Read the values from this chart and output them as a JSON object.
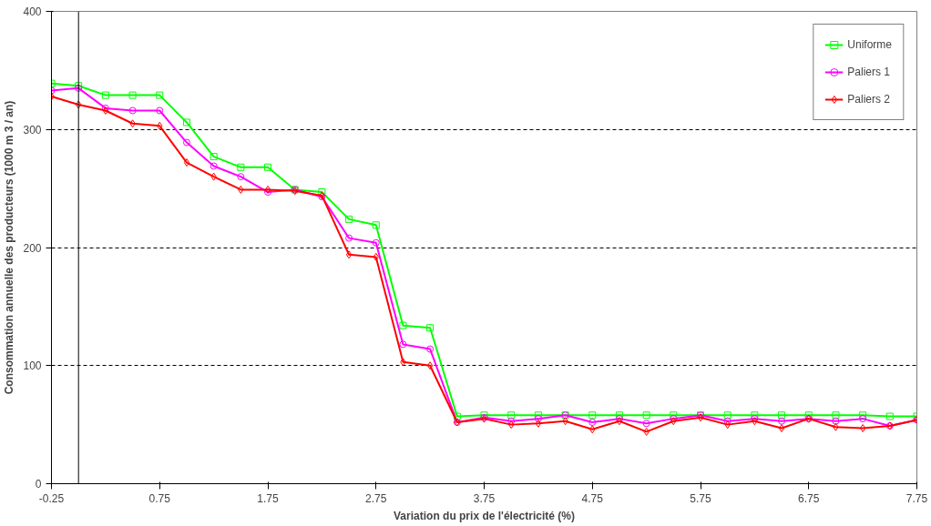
{
  "chart_data": {
    "type": "line",
    "xlabel": "Variation du prix de l'électricité (%)",
    "ylabel": "Consommation annuelle des producteurs (1000 m 3 / an)",
    "x": [
      -0.25,
      0,
      0.25,
      0.5,
      0.75,
      1.0,
      1.25,
      1.5,
      1.75,
      2.0,
      2.25,
      2.5,
      2.75,
      3.0,
      3.25,
      3.5,
      3.75,
      4.0,
      4.25,
      4.5,
      4.75,
      5.0,
      5.25,
      5.5,
      5.75,
      6.0,
      6.25,
      6.5,
      6.75,
      7.0,
      7.25,
      7.5,
      7.75
    ],
    "series": [
      {
        "name": "Uniforme",
        "color": "#00ff00",
        "marker": "square",
        "values": [
          339,
          337,
          329,
          329,
          329,
          306,
          277,
          268,
          268,
          249,
          247,
          224,
          219,
          134,
          132,
          57,
          58,
          58,
          58,
          58,
          58,
          58,
          58,
          58,
          58,
          58,
          58,
          58,
          58,
          58,
          58,
          57,
          57
        ]
      },
      {
        "name": "Paliers 1",
        "color": "#ff00ff",
        "marker": "circle",
        "values": [
          333,
          335,
          318,
          316,
          316,
          289,
          269,
          260,
          247,
          249,
          243,
          208,
          204,
          118,
          114,
          52,
          56,
          53,
          55,
          58,
          52,
          55,
          51,
          55,
          58,
          53,
          55,
          53,
          55,
          53,
          55,
          49,
          54
        ]
      },
      {
        "name": "Paliers 2",
        "color": "#ff0000",
        "marker": "diamond",
        "values": [
          328,
          321,
          316,
          305,
          303,
          272,
          260,
          249,
          249,
          248,
          244,
          194,
          192,
          103,
          100,
          52,
          55,
          50,
          51,
          53,
          46,
          53,
          44,
          53,
          56,
          50,
          53,
          47,
          55,
          48,
          47,
          49,
          54
        ]
      }
    ],
    "xlim": [
      -0.25,
      7.75
    ],
    "xticks": [
      -0.25,
      0.75,
      1.75,
      2.75,
      3.75,
      4.75,
      5.75,
      6.75,
      7.75
    ],
    "ylim": [
      0,
      400
    ],
    "yticks": [
      0,
      100,
      200,
      300,
      400
    ],
    "ref_lines": [
      {
        "axis": "x",
        "value": 0,
        "label": null,
        "color": "#000000"
      }
    ],
    "grid": "y",
    "legend": "top right",
    "line_style": "solid"
  }
}
